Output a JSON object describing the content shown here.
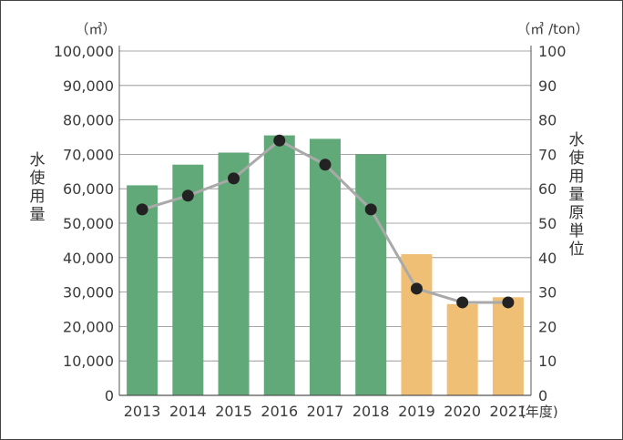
{
  "chart_data": {
    "type": "bar",
    "categories": [
      "2013",
      "2014",
      "2015",
      "2016",
      "2017",
      "2018",
      "2019",
      "2020",
      "2021"
    ],
    "x_unit": "(年度)",
    "series": [
      {
        "name": "水使用量",
        "type": "bar",
        "axis": "left",
        "values": [
          61000,
          67000,
          70500,
          75500,
          74500,
          70000,
          41000,
          26500,
          28500
        ],
        "colors": [
          "#62a979",
          "#62a979",
          "#62a979",
          "#62a979",
          "#62a979",
          "#62a979",
          "#efbf76",
          "#efbf76",
          "#efbf76"
        ]
      },
      {
        "name": "水使用量原単位",
        "type": "line",
        "axis": "right",
        "values": [
          54,
          58,
          63,
          74,
          67,
          54,
          31,
          27,
          27
        ],
        "line_color": "#a9a9a9",
        "marker_color": "#222222"
      }
    ],
    "y_left": {
      "label": "水使用量",
      "unit": "（㎥）",
      "ylim": [
        0,
        100000
      ],
      "ticks": [
        "0",
        "10,000",
        "20,000",
        "30,000",
        "40,000",
        "50,000",
        "60,000",
        "70,000",
        "80,000",
        "90,000",
        "100,000"
      ]
    },
    "y_right": {
      "label": "水使用量原単位",
      "unit": "（㎥ /ton）",
      "ylim": [
        0,
        100
      ],
      "ticks": [
        "0",
        "10",
        "20",
        "30",
        "40",
        "50",
        "60",
        "70",
        "80",
        "90",
        "100"
      ]
    },
    "grid": true,
    "legend": "none"
  }
}
